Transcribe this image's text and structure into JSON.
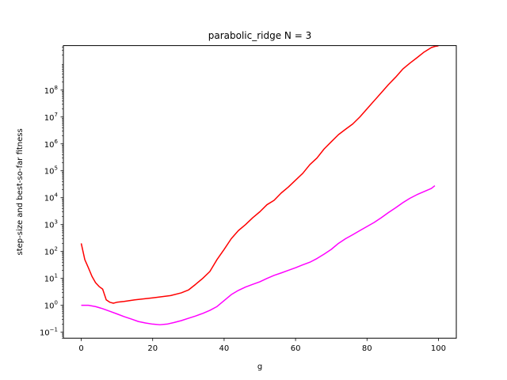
{
  "chart_data": {
    "type": "line",
    "title": "parabolic_ridge N = 3",
    "xlabel": "g",
    "ylabel": "step-size and best-so-far fitness",
    "xlim": [
      -5,
      105
    ],
    "ylim": [
      0.06,
      4500000000
    ],
    "yscale": "log",
    "x_ticks": [
      0,
      20,
      40,
      60,
      80,
      100
    ],
    "x_tick_labels": [
      "0",
      "20",
      "40",
      "60",
      "80",
      "100"
    ],
    "y_ticks": [
      0.1,
      1,
      10,
      100,
      1000,
      10000,
      100000,
      1000000,
      10000000,
      100000000
    ],
    "y_tick_labels": [
      {
        "base": "10",
        "exp": "−1"
      },
      {
        "base": "10",
        "exp": "0"
      },
      {
        "base": "10",
        "exp": "1"
      },
      {
        "base": "10",
        "exp": "2"
      },
      {
        "base": "10",
        "exp": "3"
      },
      {
        "base": "10",
        "exp": "4"
      },
      {
        "base": "10",
        "exp": "5"
      },
      {
        "base": "10",
        "exp": "6"
      },
      {
        "base": "10",
        "exp": "7"
      },
      {
        "base": "10",
        "exp": "8"
      }
    ],
    "grid": false,
    "series": [
      {
        "color": "#ff0000",
        "x": [
          0,
          1,
          2,
          3,
          4,
          5,
          6,
          7,
          8,
          9,
          10,
          12,
          15,
          20,
          25,
          28,
          30,
          32,
          34,
          36,
          37,
          38,
          40,
          42,
          44,
          46,
          48,
          50,
          52,
          54,
          56,
          58,
          60,
          62,
          64,
          66,
          68,
          70,
          72,
          74,
          76,
          78,
          80,
          82,
          84,
          86,
          88,
          90,
          92,
          94,
          96,
          98,
          99,
          100
        ],
        "y": [
          200,
          50,
          25,
          12,
          7,
          5,
          4,
          1.6,
          1.3,
          1.2,
          1.3,
          1.4,
          1.6,
          1.9,
          2.3,
          2.9,
          3.7,
          6,
          10,
          18,
          30,
          50,
          120,
          300,
          600,
          1000,
          1800,
          3000,
          5500,
          8000,
          15000,
          25000,
          45000,
          80000,
          170000,
          300000,
          650000,
          1200000,
          2200000,
          3500000,
          5500000,
          10000000,
          20000000,
          40000000,
          80000000,
          160000000,
          300000000,
          600000000,
          1000000000,
          1600000000,
          2600000000,
          3800000000,
          4200000000,
          4400000000
        ]
      },
      {
        "color": "#ff00ff",
        "x": [
          0,
          2,
          4,
          6,
          8,
          10,
          12,
          14,
          16,
          18,
          20,
          22,
          24,
          26,
          28,
          30,
          32,
          34,
          36,
          38,
          40,
          42,
          44,
          46,
          48,
          50,
          52,
          54,
          56,
          58,
          60,
          62,
          64,
          66,
          68,
          70,
          72,
          74,
          76,
          78,
          80,
          82,
          84,
          86,
          88,
          90,
          92,
          94,
          96,
          98,
          99
        ],
        "y": [
          1,
          1,
          0.9,
          0.75,
          0.6,
          0.48,
          0.38,
          0.31,
          0.25,
          0.22,
          0.2,
          0.19,
          0.2,
          0.23,
          0.27,
          0.33,
          0.4,
          0.5,
          0.65,
          0.9,
          1.5,
          2.5,
          3.6,
          4.8,
          6,
          7.5,
          10,
          13,
          16,
          20,
          25,
          32,
          40,
          55,
          80,
          120,
          200,
          300,
          420,
          600,
          850,
          1200,
          1800,
          2800,
          4200,
          6500,
          9500,
          13000,
          17000,
          22000,
          28000
        ]
      }
    ]
  }
}
